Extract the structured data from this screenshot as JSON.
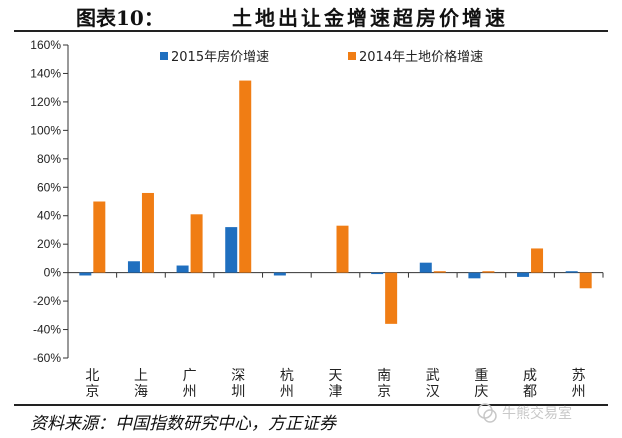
{
  "header": {
    "figure_label": "图表10：",
    "title": "土地出让金增速超房价增速"
  },
  "source": "资料来源：中国指数研究中心，方正证券",
  "watermark": "牛熊交易室",
  "colors": {
    "series_2015": "#1f6fbf",
    "series_2014": "#f07d14"
  },
  "chart_data": {
    "type": "bar",
    "categories": [
      "北京",
      "上海",
      "广州",
      "深圳",
      "杭州",
      "天津",
      "南京",
      "武汉",
      "重庆",
      "成都",
      "苏州"
    ],
    "series": [
      {
        "name": "2015年房价增速",
        "values": [
          -2,
          8,
          5,
          32,
          -2,
          0,
          -1,
          7,
          -4,
          -3,
          1
        ]
      },
      {
        "name": "2014年土地价格增速",
        "values": [
          50,
          56,
          41,
          135,
          0,
          33,
          -36,
          1,
          1,
          17,
          -11
        ]
      }
    ],
    "ylim": [
      -60,
      160
    ],
    "yticks": [
      -60,
      -40,
      -20,
      0,
      20,
      40,
      60,
      80,
      100,
      120,
      140,
      160
    ],
    "ytick_labels": [
      "-60%",
      "-40%",
      "-20%",
      "0%",
      "20%",
      "40%",
      "60%",
      "80%",
      "100%",
      "120%",
      "140%",
      "160%"
    ],
    "legend_position": "top",
    "grid": false
  }
}
